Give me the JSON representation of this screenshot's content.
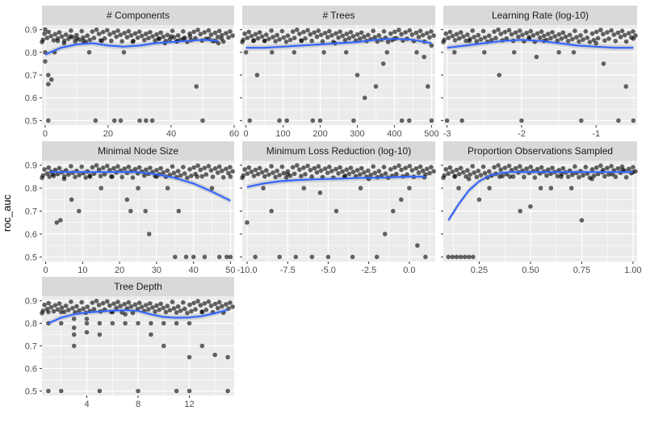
{
  "chart_data": {
    "type": "scatter",
    "ylabel": "roc_auc",
    "ylim": [
      0.48,
      0.92
    ],
    "yticks": [
      0.5,
      0.6,
      0.7,
      0.8,
      0.9
    ],
    "colors": {
      "panel": "#ebebeb",
      "strip": "#d9d9d9",
      "grid": "#ffffff",
      "point": "#000000",
      "smooth": "#3366ff",
      "band": "#bfbfbf"
    },
    "facets": [
      {
        "title": "# Components",
        "xlim": [
          -1,
          60
        ],
        "xticks": [
          0,
          20,
          40,
          60
        ],
        "smooth": [
          [
            0,
            0.79
          ],
          [
            5,
            0.82
          ],
          [
            10,
            0.835
          ],
          [
            15,
            0.84
          ],
          [
            20,
            0.83
          ],
          [
            25,
            0.825
          ],
          [
            30,
            0.83
          ],
          [
            35,
            0.84
          ],
          [
            40,
            0.845
          ],
          [
            45,
            0.85
          ],
          [
            50,
            0.855
          ],
          [
            55,
            0.85
          ]
        ],
        "points": [
          [
            0,
            0.9
          ],
          [
            0,
            0.8
          ],
          [
            0,
            0.76
          ],
          [
            1,
            0.7
          ],
          [
            1,
            0.66
          ],
          [
            2,
            0.68
          ],
          [
            1,
            0.5
          ],
          [
            3,
            0.8
          ],
          [
            4,
            0.85
          ],
          [
            6,
            0.84
          ],
          [
            8,
            0.87
          ],
          [
            10,
            0.86
          ],
          [
            12,
            0.85
          ],
          [
            14,
            0.8
          ],
          [
            16,
            0.5
          ],
          [
            18,
            0.85
          ],
          [
            22,
            0.5
          ],
          [
            24,
            0.5
          ],
          [
            25,
            0.8
          ],
          [
            28,
            0.85
          ],
          [
            30,
            0.5
          ],
          [
            32,
            0.5
          ],
          [
            34,
            0.5
          ],
          [
            36,
            0.86
          ],
          [
            38,
            0.84
          ],
          [
            40,
            0.87
          ],
          [
            42,
            0.85
          ],
          [
            44,
            0.86
          ],
          [
            46,
            0.87
          ],
          [
            48,
            0.65
          ],
          [
            50,
            0.5
          ],
          [
            52,
            0.86
          ],
          [
            54,
            0.85
          ],
          [
            55,
            0.84
          ],
          [
            56,
            0.86
          ]
        ]
      },
      {
        "title": "# Trees",
        "xlim": [
          -10,
          510
        ],
        "xticks": [
          0,
          100,
          200,
          300,
          400,
          500
        ],
        "smooth": [
          [
            0,
            0.82
          ],
          [
            50,
            0.82
          ],
          [
            100,
            0.825
          ],
          [
            150,
            0.83
          ],
          [
            200,
            0.835
          ],
          [
            250,
            0.84
          ],
          [
            300,
            0.845
          ],
          [
            350,
            0.855
          ],
          [
            400,
            0.86
          ],
          [
            450,
            0.855
          ],
          [
            500,
            0.84
          ]
        ],
        "points": [
          [
            0,
            0.8
          ],
          [
            10,
            0.5
          ],
          [
            20,
            0.85
          ],
          [
            30,
            0.7
          ],
          [
            50,
            0.85
          ],
          [
            70,
            0.8
          ],
          [
            90,
            0.5
          ],
          [
            110,
            0.5
          ],
          [
            130,
            0.8
          ],
          [
            150,
            0.85
          ],
          [
            180,
            0.5
          ],
          [
            200,
            0.5
          ],
          [
            210,
            0.8
          ],
          [
            240,
            0.84
          ],
          [
            270,
            0.8
          ],
          [
            290,
            0.5
          ],
          [
            300,
            0.7
          ],
          [
            320,
            0.6
          ],
          [
            350,
            0.65
          ],
          [
            370,
            0.75
          ],
          [
            380,
            0.8
          ],
          [
            400,
            0.86
          ],
          [
            420,
            0.5
          ],
          [
            440,
            0.5
          ],
          [
            460,
            0.8
          ],
          [
            480,
            0.78
          ],
          [
            490,
            0.65
          ],
          [
            500,
            0.5
          ],
          [
            500,
            0.83
          ]
        ]
      },
      {
        "title": "Learning Rate (log-10)",
        "xlim": [
          -3.05,
          -0.45
        ],
        "xticks": [
          -3,
          -2,
          -1
        ],
        "smooth": [
          [
            -3,
            0.82
          ],
          [
            -2.75,
            0.83
          ],
          [
            -2.5,
            0.84
          ],
          [
            -2.25,
            0.85
          ],
          [
            -2,
            0.855
          ],
          [
            -1.75,
            0.85
          ],
          [
            -1.5,
            0.84
          ],
          [
            -1.25,
            0.83
          ],
          [
            -1,
            0.825
          ],
          [
            -0.75,
            0.82
          ],
          [
            -0.5,
            0.82
          ]
        ],
        "points": [
          [
            -3,
            0.5
          ],
          [
            -2.9,
            0.8
          ],
          [
            -2.8,
            0.5
          ],
          [
            -2.7,
            0.85
          ],
          [
            -2.5,
            0.8
          ],
          [
            -2.3,
            0.7
          ],
          [
            -2.1,
            0.8
          ],
          [
            -2,
            0.5
          ],
          [
            -1.9,
            0.86
          ],
          [
            -1.8,
            0.78
          ],
          [
            -1.7,
            0.85
          ],
          [
            -1.5,
            0.8
          ],
          [
            -1.3,
            0.8
          ],
          [
            -1.2,
            0.5
          ],
          [
            -1,
            0.84
          ],
          [
            -0.9,
            0.75
          ],
          [
            -0.7,
            0.5
          ],
          [
            -0.6,
            0.65
          ],
          [
            -0.5,
            0.5
          ],
          [
            -0.5,
            0.86
          ]
        ]
      },
      {
        "title": "Minimal Node Size",
        "xlim": [
          -1,
          51
        ],
        "xticks": [
          0,
          10,
          20,
          30,
          40,
          50
        ],
        "smooth": [
          [
            1,
            0.87
          ],
          [
            5,
            0.87
          ],
          [
            10,
            0.87
          ],
          [
            15,
            0.87
          ],
          [
            20,
            0.87
          ],
          [
            25,
            0.87
          ],
          [
            30,
            0.86
          ],
          [
            35,
            0.845
          ],
          [
            40,
            0.82
          ],
          [
            45,
            0.785
          ],
          [
            50,
            0.745
          ]
        ],
        "points": [
          [
            1,
            0.85
          ],
          [
            2,
            0.86
          ],
          [
            3,
            0.65
          ],
          [
            4,
            0.66
          ],
          [
            5,
            0.84
          ],
          [
            7,
            0.75
          ],
          [
            9,
            0.7
          ],
          [
            12,
            0.85
          ],
          [
            15,
            0.8
          ],
          [
            18,
            0.85
          ],
          [
            22,
            0.75
          ],
          [
            23,
            0.7
          ],
          [
            25,
            0.8
          ],
          [
            27,
            0.7
          ],
          [
            28,
            0.6
          ],
          [
            30,
            0.85
          ],
          [
            33,
            0.8
          ],
          [
            35,
            0.5
          ],
          [
            36,
            0.7
          ],
          [
            38,
            0.5
          ],
          [
            40,
            0.5
          ],
          [
            41,
            0.85
          ],
          [
            43,
            0.5
          ],
          [
            45,
            0.8
          ],
          [
            47,
            0.5
          ],
          [
            49,
            0.5
          ],
          [
            50,
            0.5
          ],
          [
            50,
            0.85
          ]
        ]
      },
      {
        "title": "Minimum Loss Reduction (log-10)",
        "xlim": [
          -10.3,
          1.6
        ],
        "xticks": [
          -10.0,
          -7.5,
          -5.0,
          -2.5,
          0.0
        ],
        "smooth": [
          [
            -10,
            0.805
          ],
          [
            -9,
            0.82
          ],
          [
            -8,
            0.83
          ],
          [
            -7,
            0.835
          ],
          [
            -6,
            0.838
          ],
          [
            -5,
            0.84
          ],
          [
            -4,
            0.842
          ],
          [
            -3,
            0.845
          ],
          [
            -2,
            0.845
          ],
          [
            -1,
            0.848
          ],
          [
            0,
            0.85
          ],
          [
            1,
            0.85
          ]
        ],
        "points": [
          [
            -10,
            0.65
          ],
          [
            -9.5,
            0.5
          ],
          [
            -9,
            0.8
          ],
          [
            -8.5,
            0.7
          ],
          [
            -8,
            0.5
          ],
          [
            -7.5,
            0.86
          ],
          [
            -7,
            0.5
          ],
          [
            -6.5,
            0.8
          ],
          [
            -6,
            0.5
          ],
          [
            -5.5,
            0.78
          ],
          [
            -5,
            0.5
          ],
          [
            -4.5,
            0.7
          ],
          [
            -4,
            0.85
          ],
          [
            -3.5,
            0.5
          ],
          [
            -3,
            0.8
          ],
          [
            -2.5,
            0.84
          ],
          [
            -2,
            0.5
          ],
          [
            -1.5,
            0.6
          ],
          [
            -1,
            0.7
          ],
          [
            -0.5,
            0.75
          ],
          [
            0,
            0.8
          ],
          [
            0.5,
            0.55
          ],
          [
            1,
            0.5
          ],
          [
            1,
            0.86
          ]
        ]
      },
      {
        "title": "Proportion Observations Sampled",
        "xlim": [
          0.075,
          1.02
        ],
        "xticks": [
          0.25,
          0.5,
          0.75,
          1.0
        ],
        "smooth": [
          [
            0.1,
            0.66
          ],
          [
            0.15,
            0.73
          ],
          [
            0.2,
            0.79
          ],
          [
            0.25,
            0.83
          ],
          [
            0.3,
            0.855
          ],
          [
            0.35,
            0.865
          ],
          [
            0.4,
            0.87
          ],
          [
            0.5,
            0.87
          ],
          [
            0.6,
            0.87
          ],
          [
            0.7,
            0.87
          ],
          [
            0.8,
            0.87
          ],
          [
            0.9,
            0.87
          ],
          [
            1,
            0.87
          ]
        ],
        "points": [
          [
            0.1,
            0.5
          ],
          [
            0.12,
            0.5
          ],
          [
            0.14,
            0.5
          ],
          [
            0.16,
            0.5
          ],
          [
            0.18,
            0.5
          ],
          [
            0.2,
            0.5
          ],
          [
            0.22,
            0.5
          ],
          [
            0.13,
            0.85
          ],
          [
            0.15,
            0.8
          ],
          [
            0.2,
            0.84
          ],
          [
            0.25,
            0.75
          ],
          [
            0.3,
            0.8
          ],
          [
            0.35,
            0.85
          ],
          [
            0.4,
            0.85
          ],
          [
            0.45,
            0.7
          ],
          [
            0.5,
            0.72
          ],
          [
            0.55,
            0.8
          ],
          [
            0.6,
            0.8
          ],
          [
            0.65,
            0.85
          ],
          [
            0.7,
            0.8
          ],
          [
            0.75,
            0.66
          ],
          [
            0.8,
            0.84
          ],
          [
            0.85,
            0.87
          ],
          [
            0.9,
            0.86
          ],
          [
            0.95,
            0.88
          ],
          [
            1,
            0.87
          ]
        ]
      },
      {
        "title": "Tree Depth",
        "xlim": [
          0.5,
          15.5
        ],
        "xticks": [
          4,
          8,
          12
        ],
        "smooth": [
          [
            1,
            0.8
          ],
          [
            2,
            0.825
          ],
          [
            3,
            0.84
          ],
          [
            4,
            0.848
          ],
          [
            5,
            0.852
          ],
          [
            6,
            0.856
          ],
          [
            7,
            0.858
          ],
          [
            8,
            0.855
          ],
          [
            9,
            0.84
          ],
          [
            10,
            0.828
          ],
          [
            11,
            0.825
          ],
          [
            12,
            0.826
          ],
          [
            13,
            0.832
          ],
          [
            14,
            0.845
          ],
          [
            15,
            0.86
          ]
        ],
        "points": [
          [
            1,
            0.85
          ],
          [
            1,
            0.8
          ],
          [
            1,
            0.5
          ],
          [
            2,
            0.85
          ],
          [
            2,
            0.8
          ],
          [
            2,
            0.5
          ],
          [
            3,
            0.82
          ],
          [
            3,
            0.78
          ],
          [
            3,
            0.75
          ],
          [
            3,
            0.7
          ],
          [
            4,
            0.82
          ],
          [
            4,
            0.8
          ],
          [
            4,
            0.76
          ],
          [
            5,
            0.8
          ],
          [
            5,
            0.75
          ],
          [
            5,
            0.5
          ],
          [
            6,
            0.85
          ],
          [
            6,
            0.8
          ],
          [
            7,
            0.84
          ],
          [
            7,
            0.8
          ],
          [
            8,
            0.8
          ],
          [
            8,
            0.5
          ],
          [
            9,
            0.8
          ],
          [
            9,
            0.75
          ],
          [
            10,
            0.8
          ],
          [
            10,
            0.7
          ],
          [
            11,
            0.8
          ],
          [
            11,
            0.5
          ],
          [
            12,
            0.65
          ],
          [
            12,
            0.5
          ],
          [
            12,
            0.8
          ],
          [
            13,
            0.85
          ],
          [
            13,
            0.7
          ],
          [
            14,
            0.66
          ],
          [
            15,
            0.5
          ],
          [
            15,
            0.65
          ]
        ]
      }
    ]
  }
}
